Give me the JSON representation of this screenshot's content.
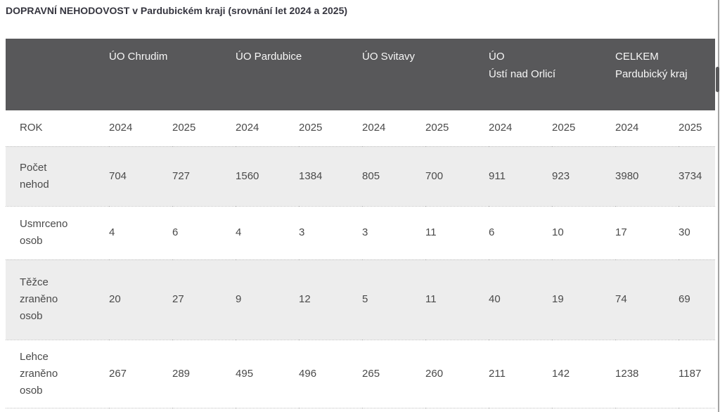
{
  "title": "DOPRAVNÍ NEHODOVOST v Pardubickém kraji (srovnání let 2024 a 2025)",
  "colors": {
    "header_bg": "#58585a",
    "header_text": "#f7f7f7",
    "body_text": "#4a4a4a",
    "alt_row_bg": "#ededed",
    "dotted_border": "#bfbfbf",
    "title_text": "#35353f"
  },
  "chart_data": {
    "type": "table",
    "title": "DOPRAVNÍ NEHODOVOST v Pardubickém kraji (srovnání let 2024 a 2025)",
    "column_groups": [
      {
        "line1": "ÚO Chrudim",
        "line2": ""
      },
      {
        "line1": "ÚO Pardubice",
        "line2": ""
      },
      {
        "line1": "ÚO Svitavy",
        "line2": ""
      },
      {
        "line1": "ÚO",
        "line2": "Ústí nad Orlicí"
      },
      {
        "line1": "CELKEM",
        "line2": "Pardubický kraj"
      }
    ],
    "year_header": {
      "label": "ROK",
      "years": [
        "2024",
        "2025",
        "2024",
        "2025",
        "2024",
        "2025",
        "2024",
        "2025",
        "2024",
        "2025"
      ]
    },
    "rows": [
      {
        "label": "Počet nehod",
        "label_lines": [
          "Počet",
          "nehod"
        ],
        "values": [
          704,
          727,
          1560,
          1384,
          805,
          700,
          911,
          923,
          3980,
          3734
        ]
      },
      {
        "label": "Usmrceno osob",
        "label_lines": [
          "Usmrceno",
          "osob"
        ],
        "values": [
          4,
          6,
          4,
          3,
          3,
          11,
          6,
          10,
          17,
          30
        ]
      },
      {
        "label": "Těžce zraněno osob",
        "label_lines": [
          "Těžce",
          "zraněno",
          "osob"
        ],
        "values": [
          20,
          27,
          9,
          12,
          5,
          11,
          40,
          19,
          74,
          69
        ]
      },
      {
        "label": "Lehce zraněno osob",
        "label_lines": [
          "Lehce",
          "zraněno",
          "osob"
        ],
        "values": [
          267,
          289,
          495,
          496,
          265,
          260,
          211,
          142,
          1238,
          1187
        ]
      }
    ]
  }
}
